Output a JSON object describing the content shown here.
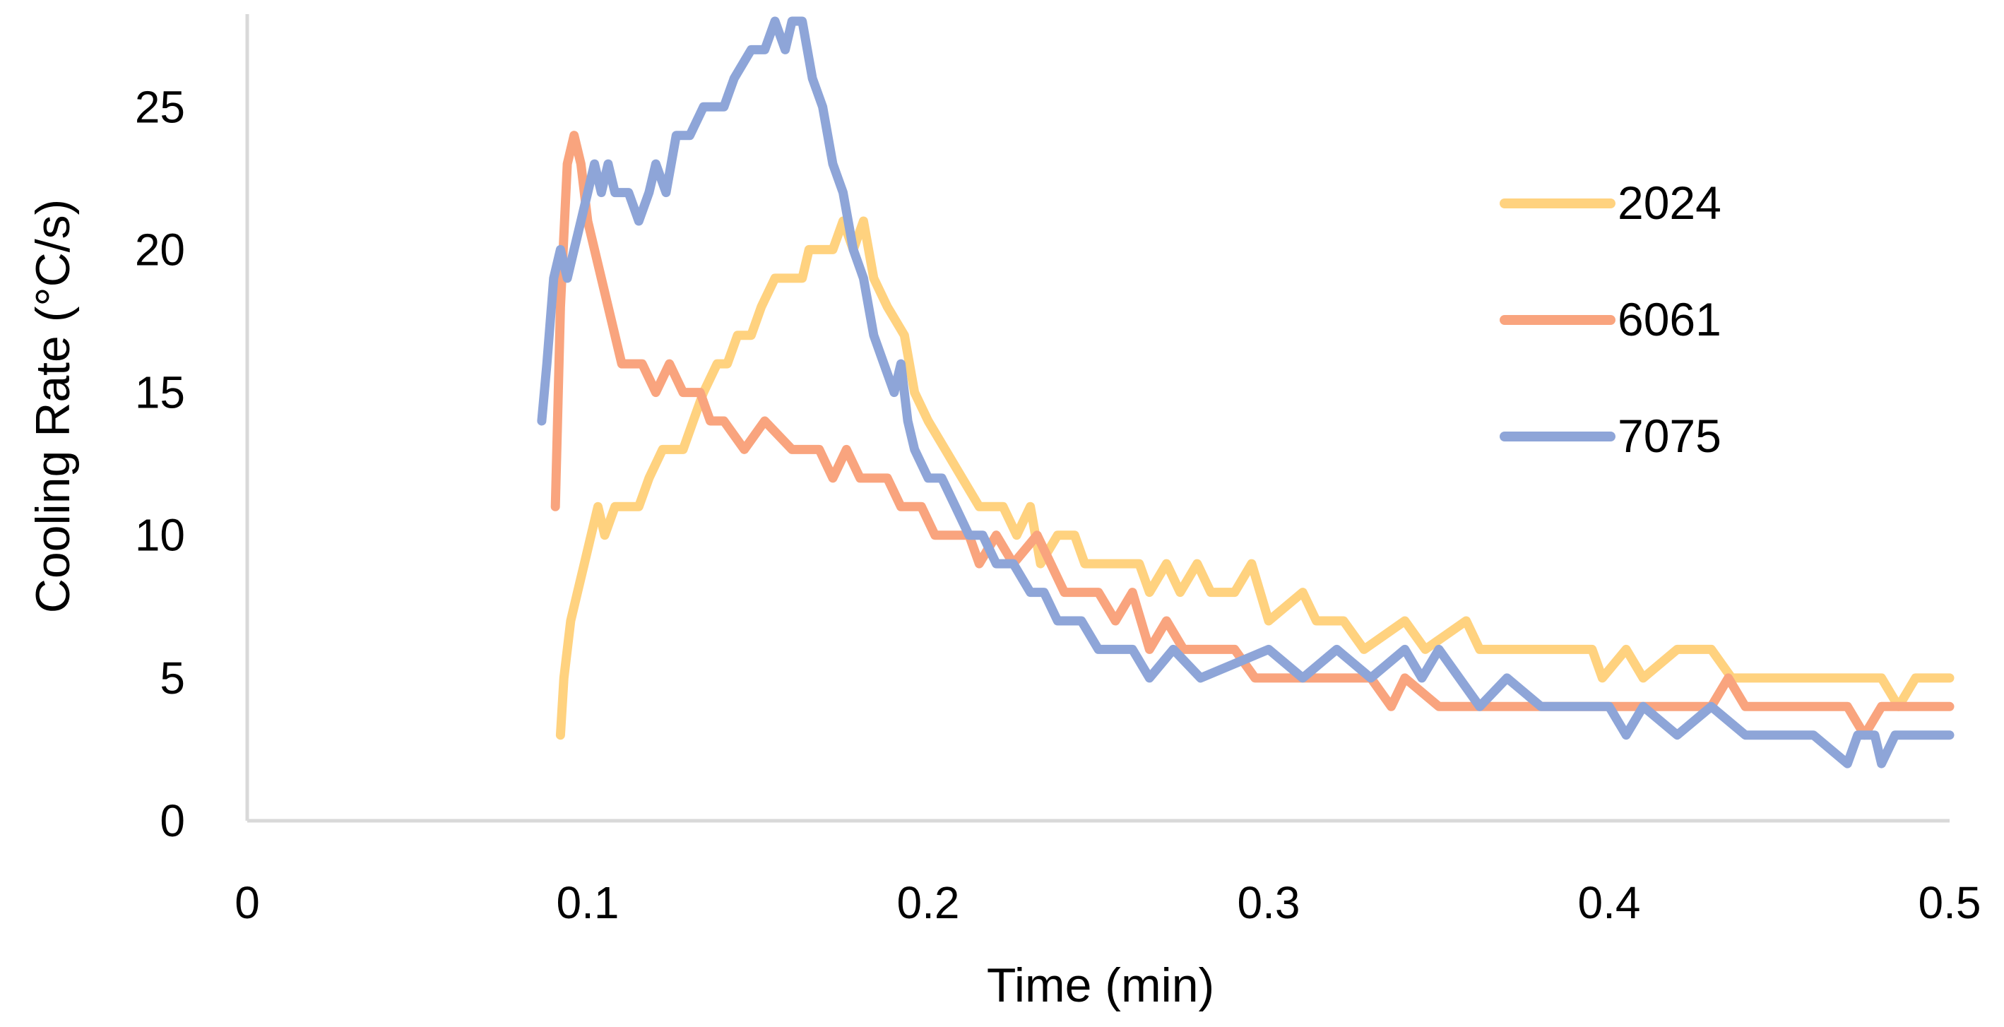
{
  "chart_data": {
    "type": "line",
    "title": "",
    "xlabel": "Time (min)",
    "ylabel": "Cooling Rate (°C/s)",
    "xlim": [
      0,
      0.5
    ],
    "ylim": [
      0,
      28
    ],
    "xticks": [
      0,
      0.1,
      0.2,
      0.3,
      0.4,
      0.5
    ],
    "xtick_labels": [
      "0",
      "0.1",
      "0.2",
      "0.3",
      "0.4",
      "0.5"
    ],
    "yticks": [
      0,
      5,
      10,
      15,
      20,
      25
    ],
    "ytick_labels": [
      "0",
      "5",
      "10",
      "15",
      "20",
      "25"
    ],
    "grid": false,
    "legend_position": "right",
    "series": [
      {
        "name": "2024",
        "color": "#FFD27F",
        "points": [
          [
            0.092,
            3
          ],
          [
            0.093,
            5
          ],
          [
            0.095,
            7
          ],
          [
            0.097,
            8
          ],
          [
            0.099,
            9
          ],
          [
            0.101,
            10
          ],
          [
            0.103,
            11
          ],
          [
            0.105,
            10
          ],
          [
            0.108,
            11
          ],
          [
            0.115,
            11
          ],
          [
            0.118,
            12
          ],
          [
            0.122,
            13
          ],
          [
            0.128,
            13
          ],
          [
            0.131,
            14
          ],
          [
            0.134,
            15
          ],
          [
            0.138,
            16
          ],
          [
            0.141,
            16
          ],
          [
            0.144,
            17
          ],
          [
            0.148,
            17
          ],
          [
            0.151,
            18
          ],
          [
            0.155,
            19
          ],
          [
            0.158,
            19
          ],
          [
            0.163,
            19
          ],
          [
            0.165,
            20
          ],
          [
            0.172,
            20
          ],
          [
            0.175,
            21
          ],
          [
            0.178,
            20
          ],
          [
            0.181,
            21
          ],
          [
            0.184,
            19
          ],
          [
            0.188,
            18
          ],
          [
            0.193,
            17
          ],
          [
            0.196,
            15
          ],
          [
            0.2,
            14
          ],
          [
            0.205,
            13
          ],
          [
            0.21,
            12
          ],
          [
            0.215,
            11
          ],
          [
            0.222,
            11
          ],
          [
            0.226,
            10
          ],
          [
            0.23,
            11
          ],
          [
            0.233,
            9
          ],
          [
            0.238,
            10
          ],
          [
            0.243,
            10
          ],
          [
            0.246,
            9
          ],
          [
            0.262,
            9
          ],
          [
            0.265,
            8
          ],
          [
            0.27,
            9
          ],
          [
            0.274,
            8
          ],
          [
            0.279,
            9
          ],
          [
            0.283,
            8
          ],
          [
            0.29,
            8
          ],
          [
            0.295,
            9
          ],
          [
            0.3,
            7
          ],
          [
            0.31,
            8
          ],
          [
            0.314,
            7
          ],
          [
            0.322,
            7
          ],
          [
            0.328,
            6
          ],
          [
            0.34,
            7
          ],
          [
            0.346,
            6
          ],
          [
            0.358,
            7
          ],
          [
            0.362,
            6
          ],
          [
            0.395,
            6
          ],
          [
            0.398,
            5
          ],
          [
            0.405,
            6
          ],
          [
            0.41,
            5
          ],
          [
            0.42,
            6
          ],
          [
            0.43,
            6
          ],
          [
            0.436,
            5
          ],
          [
            0.48,
            5
          ],
          [
            0.485,
            4
          ],
          [
            0.49,
            5
          ],
          [
            0.5,
            5
          ]
        ]
      },
      {
        "name": "6061",
        "color": "#F9A47E",
        "points": [
          [
            0.0905,
            11
          ],
          [
            0.092,
            18
          ],
          [
            0.094,
            23
          ],
          [
            0.096,
            24
          ],
          [
            0.098,
            23
          ],
          [
            0.1,
            21
          ],
          [
            0.102,
            20
          ],
          [
            0.106,
            18
          ],
          [
            0.11,
            16
          ],
          [
            0.116,
            16
          ],
          [
            0.12,
            15
          ],
          [
            0.124,
            16
          ],
          [
            0.128,
            15
          ],
          [
            0.133,
            15
          ],
          [
            0.136,
            14
          ],
          [
            0.14,
            14
          ],
          [
            0.146,
            13
          ],
          [
            0.152,
            14
          ],
          [
            0.16,
            13
          ],
          [
            0.168,
            13
          ],
          [
            0.172,
            12
          ],
          [
            0.176,
            13
          ],
          [
            0.18,
            12
          ],
          [
            0.188,
            12
          ],
          [
            0.192,
            11
          ],
          [
            0.198,
            11
          ],
          [
            0.202,
            10
          ],
          [
            0.207,
            10
          ],
          [
            0.212,
            10
          ],
          [
            0.215,
            9
          ],
          [
            0.22,
            10
          ],
          [
            0.225,
            9
          ],
          [
            0.232,
            10
          ],
          [
            0.236,
            9
          ],
          [
            0.24,
            8
          ],
          [
            0.25,
            8
          ],
          [
            0.255,
            7
          ],
          [
            0.26,
            8
          ],
          [
            0.265,
            6
          ],
          [
            0.27,
            7
          ],
          [
            0.275,
            6
          ],
          [
            0.282,
            6
          ],
          [
            0.29,
            6
          ],
          [
            0.296,
            5
          ],
          [
            0.3,
            5
          ],
          [
            0.33,
            5
          ],
          [
            0.336,
            4
          ],
          [
            0.34,
            5
          ],
          [
            0.35,
            4
          ],
          [
            0.36,
            4
          ],
          [
            0.38,
            4
          ],
          [
            0.39,
            4
          ],
          [
            0.42,
            4
          ],
          [
            0.43,
            4
          ],
          [
            0.435,
            5
          ],
          [
            0.44,
            4
          ],
          [
            0.47,
            4
          ],
          [
            0.475,
            3
          ],
          [
            0.48,
            4
          ],
          [
            0.5,
            4
          ]
        ]
      },
      {
        "name": "7075",
        "color": "#8EA5D8",
        "points": [
          [
            0.0865,
            14
          ],
          [
            0.088,
            16
          ],
          [
            0.09,
            19
          ],
          [
            0.092,
            20
          ],
          [
            0.094,
            19
          ],
          [
            0.096,
            20
          ],
          [
            0.098,
            21
          ],
          [
            0.1,
            22
          ],
          [
            0.102,
            23
          ],
          [
            0.104,
            22
          ],
          [
            0.106,
            23
          ],
          [
            0.108,
            22
          ],
          [
            0.112,
            22
          ],
          [
            0.115,
            21
          ],
          [
            0.118,
            22
          ],
          [
            0.12,
            23
          ],
          [
            0.123,
            22
          ],
          [
            0.126,
            24
          ],
          [
            0.13,
            24
          ],
          [
            0.134,
            25
          ],
          [
            0.14,
            25
          ],
          [
            0.143,
            26
          ],
          [
            0.148,
            27
          ],
          [
            0.152,
            27
          ],
          [
            0.155,
            28
          ],
          [
            0.158,
            27
          ],
          [
            0.16,
            28
          ],
          [
            0.163,
            28
          ],
          [
            0.166,
            26
          ],
          [
            0.169,
            25
          ],
          [
            0.172,
            23
          ],
          [
            0.175,
            22
          ],
          [
            0.178,
            20
          ],
          [
            0.181,
            19
          ],
          [
            0.184,
            17
          ],
          [
            0.187,
            16
          ],
          [
            0.19,
            15
          ],
          [
            0.192,
            16
          ],
          [
            0.194,
            14
          ],
          [
            0.196,
            13
          ],
          [
            0.2,
            12
          ],
          [
            0.204,
            12
          ],
          [
            0.208,
            11
          ],
          [
            0.212,
            10
          ],
          [
            0.216,
            10
          ],
          [
            0.22,
            9
          ],
          [
            0.225,
            9
          ],
          [
            0.23,
            8
          ],
          [
            0.234,
            8
          ],
          [
            0.238,
            7
          ],
          [
            0.245,
            7
          ],
          [
            0.25,
            6
          ],
          [
            0.26,
            6
          ],
          [
            0.265,
            5
          ],
          [
            0.272,
            6
          ],
          [
            0.28,
            5
          ],
          [
            0.3,
            6
          ],
          [
            0.31,
            5
          ],
          [
            0.32,
            6
          ],
          [
            0.33,
            5
          ],
          [
            0.34,
            6
          ],
          [
            0.345,
            5
          ],
          [
            0.35,
            6
          ],
          [
            0.356,
            5
          ],
          [
            0.362,
            4
          ],
          [
            0.37,
            5
          ],
          [
            0.38,
            4
          ],
          [
            0.4,
            4
          ],
          [
            0.405,
            3
          ],
          [
            0.41,
            4
          ],
          [
            0.42,
            3
          ],
          [
            0.43,
            4
          ],
          [
            0.44,
            3
          ],
          [
            0.46,
            3
          ],
          [
            0.47,
            2
          ],
          [
            0.473,
            3
          ],
          [
            0.478,
            3
          ],
          [
            0.48,
            2
          ],
          [
            0.484,
            3
          ],
          [
            0.5,
            3
          ]
        ]
      }
    ]
  },
  "colors": {
    "axis": "#D9D9D9",
    "text": "#000000",
    "background": "#FFFFFF"
  }
}
